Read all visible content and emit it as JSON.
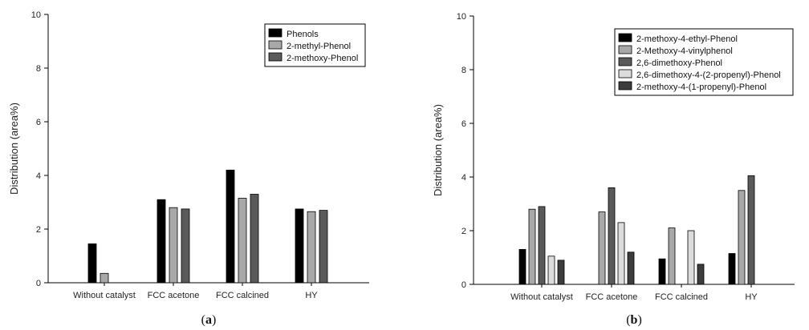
{
  "chart_data": [
    {
      "type": "bar",
      "panel": "a",
      "panel_label_open": "(",
      "panel_label_letter": "a",
      "panel_label_close": ")",
      "ylabel": "Distribution (area%)",
      "ylim": [
        0,
        10
      ],
      "yticks": [
        "0",
        "2",
        "4",
        "6",
        "8",
        "10"
      ],
      "categories": [
        "Without catalyst",
        "FCC acetone",
        "FCC calcined",
        "HY"
      ],
      "legend_position": "top-right",
      "series": [
        {
          "name": "Phenols",
          "color": "#000000",
          "values": [
            1.45,
            3.1,
            4.2,
            2.75
          ]
        },
        {
          "name": "2-methyl-Phenol",
          "color": "#a8a8a8",
          "values": [
            0.35,
            2.8,
            3.15,
            2.65
          ]
        },
        {
          "name": "2-methoxy-Phenol",
          "color": "#5a5a5a",
          "values": [
            0,
            2.75,
            3.3,
            2.7
          ]
        }
      ]
    },
    {
      "type": "bar",
      "panel": "b",
      "panel_label_open": "(",
      "panel_label_letter": "b",
      "panel_label_close": ")",
      "ylabel": "Distribution (area%)",
      "ylim": [
        0,
        10
      ],
      "yticks": [
        "0",
        "2",
        "4",
        "6",
        "8",
        "10"
      ],
      "categories": [
        "Without catalyst",
        "FCC acetone",
        "FCC calcined",
        "HY"
      ],
      "legend_position": "top-right",
      "series": [
        {
          "name": "2-methoxy-4-ethyl-Phenol",
          "color": "#000000",
          "values": [
            1.3,
            0,
            0.95,
            1.15
          ]
        },
        {
          "name": "2-Methoxy-4-vinylphenol",
          "color": "#a8a8a8",
          "values": [
            2.8,
            2.7,
            2.1,
            3.5
          ]
        },
        {
          "name": "2,6-dimethoxy-Phenol",
          "color": "#5a5a5a",
          "values": [
            2.9,
            3.6,
            0,
            4.05
          ]
        },
        {
          "name": "2,6-dimethoxy-4-(2-propenyl)-Phenol",
          "color": "#dcdcdc",
          "values": [
            1.05,
            2.3,
            2.0,
            0
          ]
        },
        {
          "name": "2-methoxy-4-(1-propenyl)-Phenol",
          "color": "#3c3c3c",
          "values": [
            0.9,
            1.2,
            0.75,
            0
          ]
        }
      ]
    }
  ]
}
